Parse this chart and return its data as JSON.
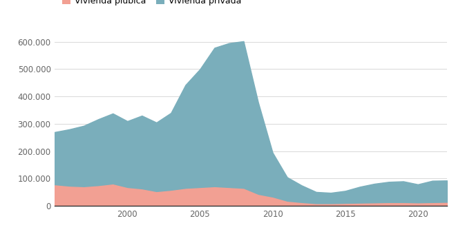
{
  "legend_labels": [
    "Vivienda plúbica",
    "Vivienda privada"
  ],
  "color_publica": "#f2a093",
  "color_privada": "#7aaebb",
  "background_color": "#ffffff",
  "years": [
    1995,
    1996,
    1997,
    1998,
    1999,
    2000,
    2001,
    2002,
    2003,
    2004,
    2005,
    2006,
    2007,
    2008,
    2009,
    2010,
    2011,
    2012,
    2013,
    2014,
    2015,
    2016,
    2017,
    2018,
    2019,
    2020,
    2021,
    2022
  ],
  "vivienda_publica": [
    75000,
    70000,
    68000,
    72000,
    78000,
    65000,
    60000,
    50000,
    55000,
    62000,
    65000,
    68000,
    65000,
    62000,
    40000,
    30000,
    15000,
    10000,
    6000,
    6000,
    7000,
    8000,
    9000,
    10000,
    10000,
    9000,
    10000,
    11000
  ],
  "vivienda_privada": [
    195000,
    210000,
    225000,
    245000,
    260000,
    245000,
    270000,
    255000,
    285000,
    380000,
    435000,
    510000,
    530000,
    540000,
    340000,
    165000,
    90000,
    65000,
    45000,
    42000,
    48000,
    62000,
    72000,
    78000,
    80000,
    70000,
    82000,
    82000
  ],
  "ylim": [
    0,
    650000
  ],
  "yticks": [
    0,
    100000,
    200000,
    300000,
    400000,
    500000,
    600000
  ],
  "ytick_labels": [
    "0",
    "100.000",
    "200.000",
    "300.000",
    "400.000",
    "500.000",
    "600.000"
  ],
  "xlim": [
    1995,
    2022
  ],
  "xtick_years": [
    2000,
    2005,
    2010,
    2015,
    2020
  ],
  "grid_color": "#d8d8d8",
  "bottom_line_color": "#333333",
  "tick_fontsize": 8.5,
  "legend_fontsize": 9
}
